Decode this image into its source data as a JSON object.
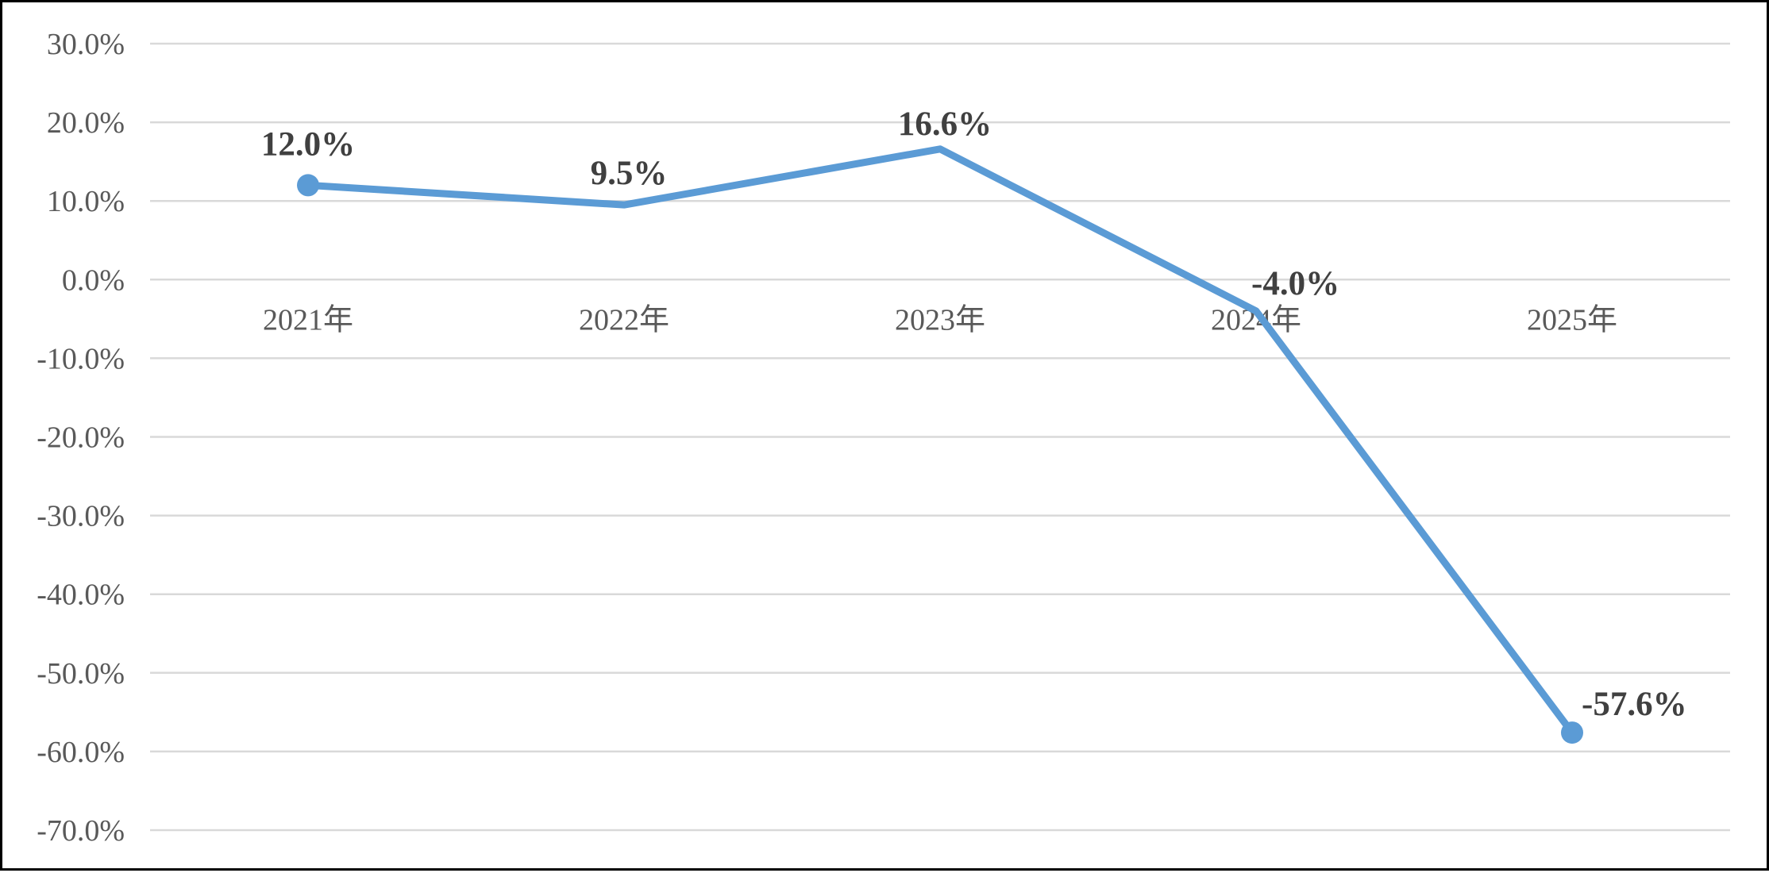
{
  "chart_data": {
    "type": "line",
    "title": "",
    "xlabel": "",
    "ylabel": "",
    "categories": [
      "2021年",
      "2022年",
      "2023年",
      "2024年",
      "2025年"
    ],
    "series": [
      {
        "values": [
          12.0,
          9.5,
          16.6,
          -4.0,
          -57.6
        ],
        "data_labels": [
          "12.0%",
          "9.5%",
          "16.6%",
          "-4.0%",
          "-57.6%"
        ],
        "color": "#5B9BD5",
        "markers_on": [
          "2021年",
          "2025年"
        ]
      }
    ],
    "ylim": [
      -70,
      30
    ],
    "y_ticks": [
      30,
      20,
      10,
      0,
      -10,
      -20,
      -30,
      -40,
      -50,
      -60,
      -70
    ],
    "y_tick_labels": [
      "30.0%",
      "20.0%",
      "10.0%",
      "0.0%",
      "-10.0%",
      "-20.0%",
      "-30.0%",
      "-40.0%",
      "-50.0%",
      "-60.0%",
      "-70.0%"
    ],
    "grid": true,
    "legend": "none",
    "gridline_color": "#D9D9D9",
    "axis_text_color": "#595959",
    "data_label_color": "#404040"
  }
}
